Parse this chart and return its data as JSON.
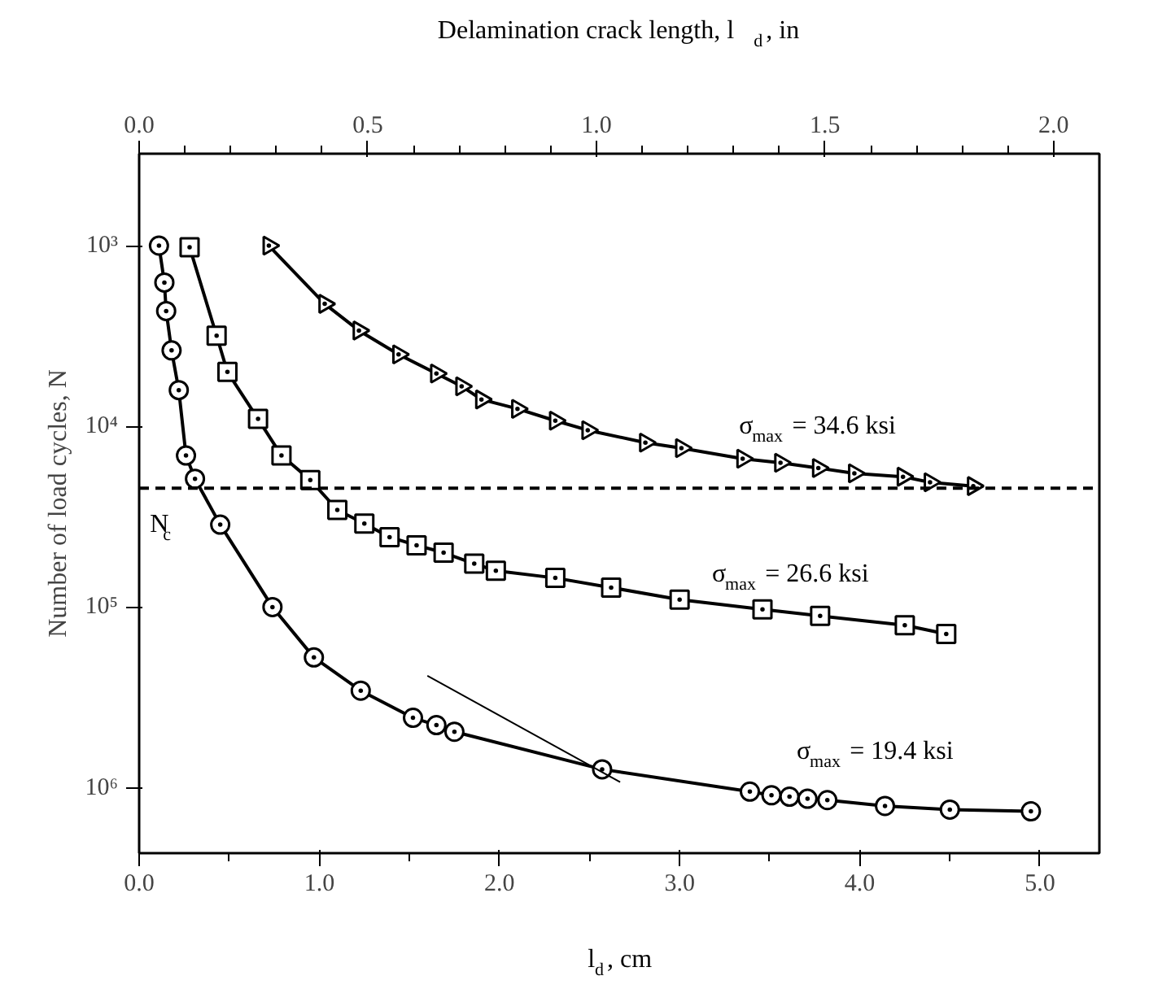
{
  "chart_data": {
    "type": "line",
    "xlabel": "l$_{d}$, cm",
    "x2label": "Delamination crack length, l$_{d}$, in",
    "ylabel": "Number of load cycles, N",
    "log": "y",
    "grid": false,
    "xlim": [
      0,
      5.33
    ],
    "xticks": [
      {
        "value": 0,
        "label": "0.0"
      },
      {
        "value": 0.5,
        "label": null
      },
      {
        "value": 1,
        "label": "1.0"
      },
      {
        "value": 1.5,
        "label": null
      },
      {
        "value": 2,
        "label": "2.0"
      },
      {
        "value": 2.5,
        "label": null
      },
      {
        "value": 3,
        "label": "3.0"
      },
      {
        "value": 3.5,
        "label": null
      },
      {
        "value": 4,
        "label": "4.0"
      },
      {
        "value": 4.5,
        "label": null
      },
      {
        "value": 5,
        "label": "5.0"
      }
    ],
    "x2lim": [
      0,
      2.1
    ],
    "x2ticks": [
      {
        "value": 0,
        "label": "0.0"
      },
      {
        "value": 0.1,
        "label": null
      },
      {
        "value": 0.2,
        "label": null
      },
      {
        "value": 0.3,
        "label": null
      },
      {
        "value": 0.4,
        "label": null
      },
      0.5,
      {
        "value": 0.6,
        "label": null
      },
      {
        "value": 0.7,
        "label": null
      },
      {
        "value": 0.8,
        "label": null
      },
      {
        "value": 0.9,
        "label": null
      },
      {
        "value": 1,
        "label": "1.0"
      },
      {
        "value": 1.1,
        "label": null
      },
      {
        "value": 1.2,
        "label": null
      },
      {
        "value": 1.3,
        "label": null
      },
      {
        "value": 1.4,
        "label": null
      },
      1.5,
      {
        "value": 1.6,
        "label": null
      },
      {
        "value": 1.7,
        "label": null
      },
      {
        "value": 1.8,
        "label": null
      },
      {
        "value": 1.9,
        "label": null
      },
      {
        "value": 2,
        "label": "2.0"
      }
    ],
    "ylim": [
      2300000,
      310
    ],
    "yticks": [
      {
        "value": 1000,
        "label": "10³"
      },
      {
        "value": 10000,
        "label": "10⁴"
      },
      {
        "value": 100000,
        "label": "10⁵"
      },
      {
        "value": 1000000,
        "label": "10⁶"
      }
    ],
    "ref_lines": [
      {
        "axis": "y",
        "value": 22000,
        "label": "N$_{c}$",
        "color": "#000000",
        "line_style": "dashed"
      }
    ],
    "series": [
      {
        "name": "σ$_{max}$ = 34.6 ksi",
        "color": "#000000",
        "marker": "triangle",
        "x": [
          0.72,
          1.03,
          1.22,
          1.44,
          1.65,
          1.79,
          1.9,
          2.1,
          2.31,
          2.49,
          2.81,
          3.01,
          3.35,
          3.56,
          3.77,
          3.97,
          4.24,
          4.39,
          4.63
        ],
        "values": [
          1000,
          2100,
          2950,
          4000,
          5100,
          6000,
          7100,
          8000,
          9300,
          10500,
          12300,
          13200,
          15100,
          15900,
          17000,
          18200,
          19000,
          20400,
          21400
        ]
      },
      {
        "name": "σ$_{max}$ = 26.6 ksi",
        "color": "#000000",
        "marker": "square",
        "x": [
          0.28,
          0.43,
          0.49,
          0.66,
          0.79,
          0.95,
          1.1,
          1.25,
          1.39,
          1.54,
          1.69,
          1.86,
          1.98,
          2.31,
          2.62,
          3.0,
          3.46,
          3.78,
          4.25,
          4.48
        ],
        "values": [
          1020,
          3150,
          5000,
          9100,
          14500,
          19800,
          29000,
          34500,
          41000,
          45500,
          50000,
          57500,
          63000,
          69000,
          78000,
          91000,
          103000,
          112000,
          126000,
          141000
        ]
      },
      {
        "name": "σ$_{max}$ = 19.4 ksi",
        "color": "#000000",
        "marker": "circle",
        "x": [
          0.11,
          0.14,
          0.15,
          0.18,
          0.22,
          0.26,
          0.31,
          0.45,
          0.74,
          0.97,
          1.23,
          1.52,
          1.65,
          1.75,
          2.57,
          3.39,
          3.51,
          3.61,
          3.71,
          3.82,
          4.14,
          4.5,
          4.95
        ],
        "values": [
          1000,
          1600,
          2300,
          3800,
          6300,
          14500,
          19500,
          35000,
          100000,
          190000,
          290000,
          410000,
          450000,
          490000,
          790000,
          1050000,
          1100000,
          1120000,
          1150000,
          1170000,
          1260000,
          1320000,
          1350000
        ]
      },
      {
        "color": "#000000",
        "marker": "none",
        "x": [
          1.6,
          2.67
        ],
        "values": [
          240000,
          930000
        ]
      }
    ]
  }
}
